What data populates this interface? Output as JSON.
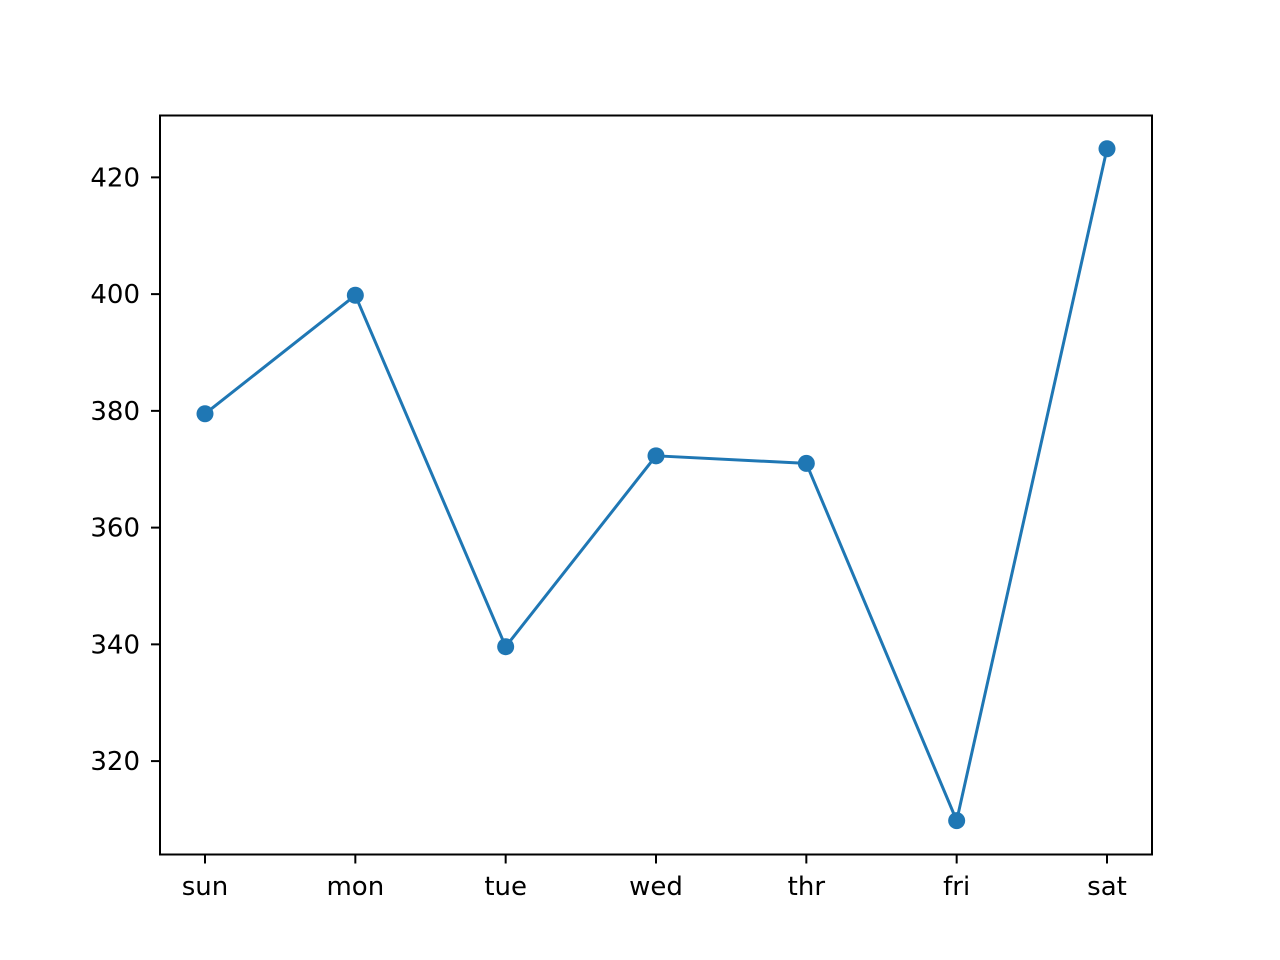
{
  "chart_data": {
    "type": "line",
    "title": "",
    "xlabel": "",
    "ylabel": "",
    "categories": [
      "sun",
      "mon",
      "tue",
      "wed",
      "thr",
      "fri",
      "sat"
    ],
    "series": [
      {
        "values": [
          379.5,
          399.8,
          339.6,
          372.3,
          371.0,
          309.8,
          424.9
        ],
        "color": "#1f77b4",
        "marker": "circle"
      }
    ],
    "yticks": [
      320,
      340,
      360,
      380,
      400,
      420
    ],
    "ylim": [
      304,
      430.6
    ],
    "grid": false,
    "legend": "none"
  }
}
